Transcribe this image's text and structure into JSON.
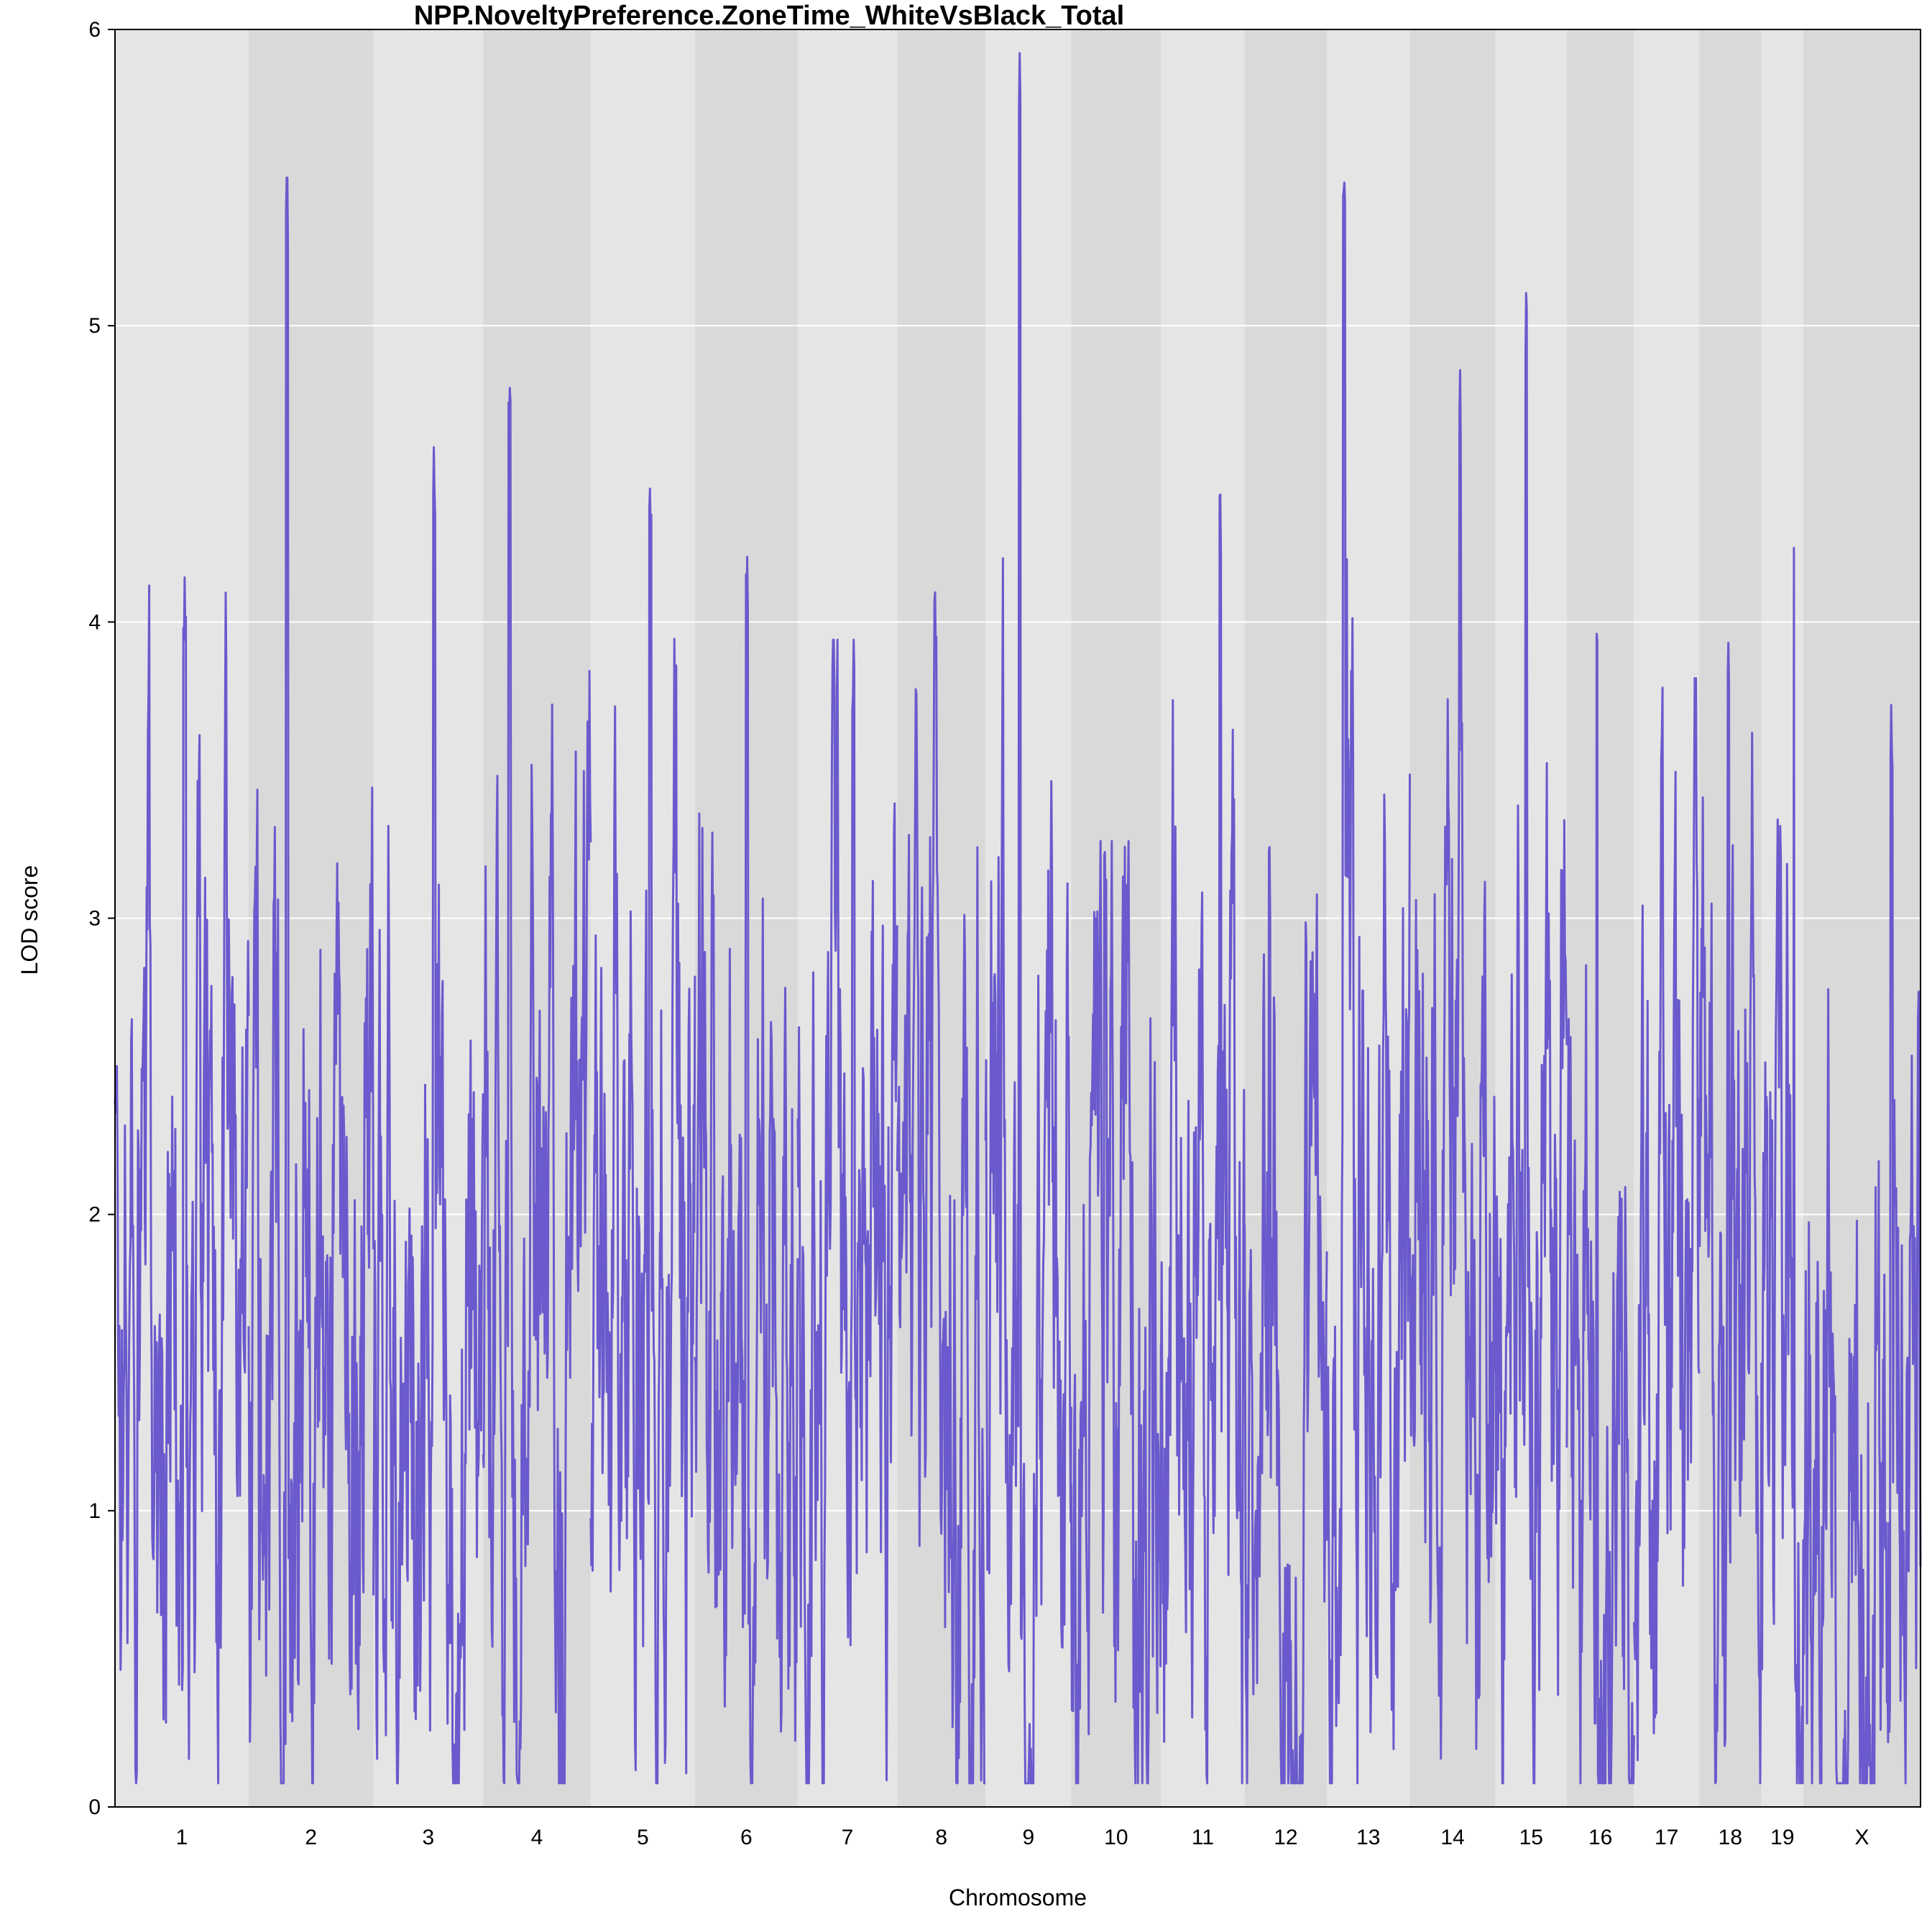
{
  "chart_data": {
    "type": "line",
    "title": "NPP.NoveltyPreference.ZoneTime_WhiteVsBlack_Total",
    "xlabel": "Chromosome",
    "ylabel": "LOD score",
    "ylim": [
      0,
      6
    ],
    "yticks": [
      "0",
      "1",
      "2",
      "3",
      "4",
      "5",
      "6"
    ],
    "grid": true,
    "line_color": "#6A5ACD",
    "band_colors": [
      "#E5E5E5",
      "#D9D9D9"
    ],
    "chromosomes": [
      {
        "label": "1",
        "start": 0,
        "end": 195,
        "peak": 4.15,
        "mean": 1.6
      },
      {
        "label": "2",
        "start": 195,
        "end": 377,
        "peak": 5.5,
        "mean": 1.8
      },
      {
        "label": "3",
        "start": 377,
        "end": 537,
        "peak": 4.59,
        "mean": 1.5
      },
      {
        "label": "4",
        "start": 537,
        "end": 694,
        "peak": 4.79,
        "mean": 1.6
      },
      {
        "label": "5",
        "start": 694,
        "end": 846,
        "peak": 4.45,
        "mean": 1.8
      },
      {
        "label": "6",
        "start": 846,
        "end": 996,
        "peak": 4.22,
        "mean": 1.6
      },
      {
        "label": "7",
        "start": 996,
        "end": 1141,
        "peak": 3.94,
        "mean": 1.5
      },
      {
        "label": "8",
        "start": 1141,
        "end": 1270,
        "peak": 4.1,
        "mean": 1.7
      },
      {
        "label": "9",
        "start": 1270,
        "end": 1395,
        "peak": 5.92,
        "mean": 2.0
      },
      {
        "label": "10",
        "start": 1395,
        "end": 1526,
        "peak": 3.26,
        "mean": 1.3
      },
      {
        "label": "11",
        "start": 1526,
        "end": 1648,
        "peak": 4.43,
        "mean": 1.7
      },
      {
        "label": "12",
        "start": 1648,
        "end": 1768,
        "peak": 3.24,
        "mean": 1.4
      },
      {
        "label": "13",
        "start": 1768,
        "end": 1889,
        "peak": 5.57,
        "mean": 1.8
      },
      {
        "label": "14",
        "start": 1889,
        "end": 2014,
        "peak": 4.85,
        "mean": 1.9
      },
      {
        "label": "15",
        "start": 2014,
        "end": 2118,
        "peak": 5.11,
        "mean": 2.0
      },
      {
        "label": "16",
        "start": 2118,
        "end": 2216,
        "peak": 3.96,
        "mean": 1.5
      },
      {
        "label": "17",
        "start": 2216,
        "end": 2311,
        "peak": 3.81,
        "mean": 1.5
      },
      {
        "label": "18",
        "start": 2311,
        "end": 2402,
        "peak": 3.93,
        "mean": 1.8
      },
      {
        "label": "19",
        "start": 2402,
        "end": 2463,
        "peak": 4.25,
        "mean": 1.4
      },
      {
        "label": "X",
        "start": 2463,
        "end": 2634,
        "peak": 3.72,
        "mean": 1.5
      }
    ]
  }
}
